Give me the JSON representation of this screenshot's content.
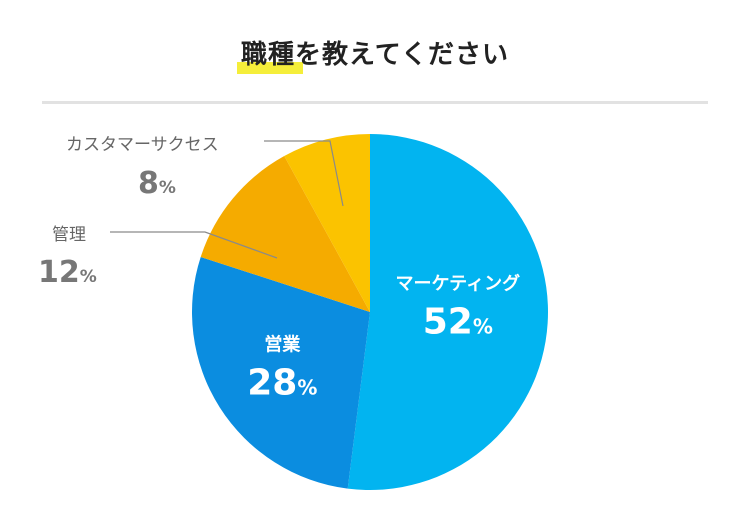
{
  "title": "職種を教えてください",
  "chart_data": {
    "type": "pie",
    "title": "職種を教えてください",
    "start": "top, clockwise",
    "slices": [
      {
        "label": "マーケティング",
        "value": 52,
        "display": "52",
        "unit": "%",
        "color": "#02b4f0",
        "label_position": "inside"
      },
      {
        "label": "営業",
        "value": 28,
        "display": "28",
        "unit": "%",
        "color": "#0b8de0",
        "label_position": "inside"
      },
      {
        "label": "管理",
        "value": 12,
        "display": "12",
        "unit": "%",
        "color": "#f5ab00",
        "label_position": "outside-left"
      },
      {
        "label": "カスタマーサクセス",
        "value": 8,
        "display": "8",
        "unit": "%",
        "color": "#fbc300",
        "label_position": "outside-left"
      }
    ]
  }
}
